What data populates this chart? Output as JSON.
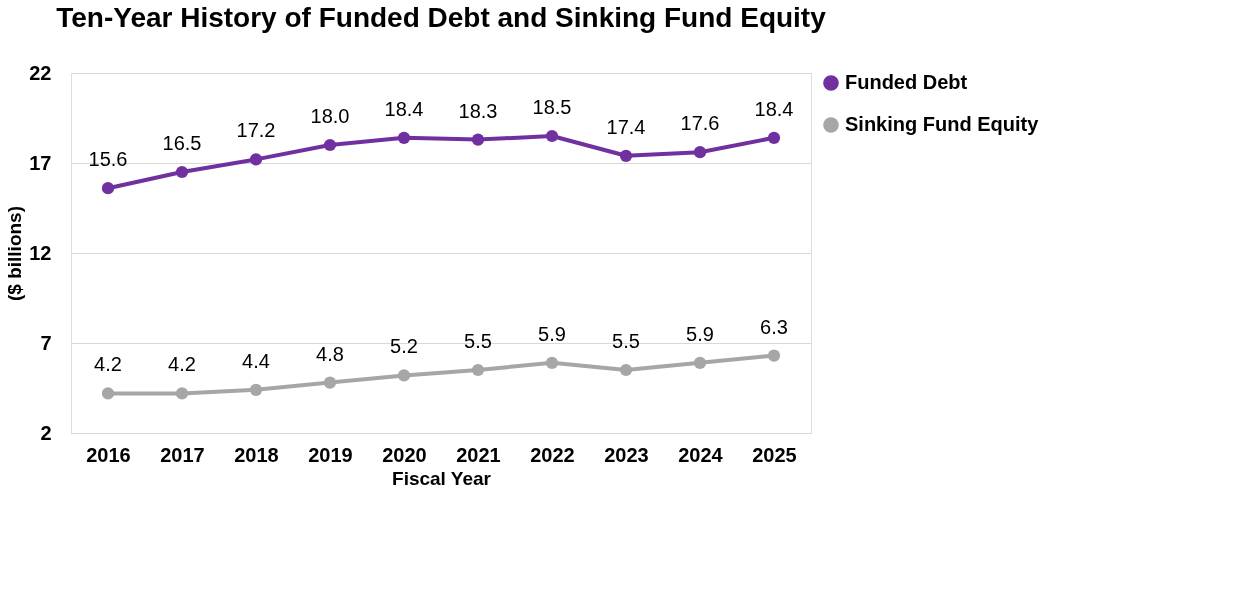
{
  "chart_data": {
    "type": "line",
    "title": "Ten-Year History of Funded Debt and Sinking Fund Equity",
    "xlabel": "Fiscal Year",
    "ylabel": "($ billions)",
    "categories": [
      "2016",
      "2017",
      "2018",
      "2019",
      "2020",
      "2021",
      "2022",
      "2023",
      "2024",
      "2025"
    ],
    "series": [
      {
        "name": "Funded Debt",
        "color": "#7030a0",
        "values": [
          15.6,
          16.5,
          17.2,
          18.0,
          18.4,
          18.3,
          18.5,
          17.4,
          17.6,
          18.4
        ],
        "value_labels": [
          "15.6",
          "16.5",
          "17.2",
          "18.0",
          "18.4",
          "18.3",
          "18.5",
          "17.4",
          "17.6",
          "18.4"
        ]
      },
      {
        "name": "Sinking Fund Equity",
        "color": "#a6a6a6",
        "values": [
          4.2,
          4.2,
          4.4,
          4.8,
          5.2,
          5.5,
          5.9,
          5.5,
          5.9,
          6.3
        ],
        "value_labels": [
          "4.2",
          "4.2",
          "4.4",
          "4.8",
          "5.2",
          "5.5",
          "5.9",
          "5.5",
          "5.9",
          "6.3"
        ]
      }
    ],
    "ylim": [
      2,
      22
    ],
    "yticks": [
      2,
      7,
      12,
      17,
      22
    ],
    "grid": "y",
    "legend": "right",
    "marker": "circle",
    "line_style": "solid"
  }
}
